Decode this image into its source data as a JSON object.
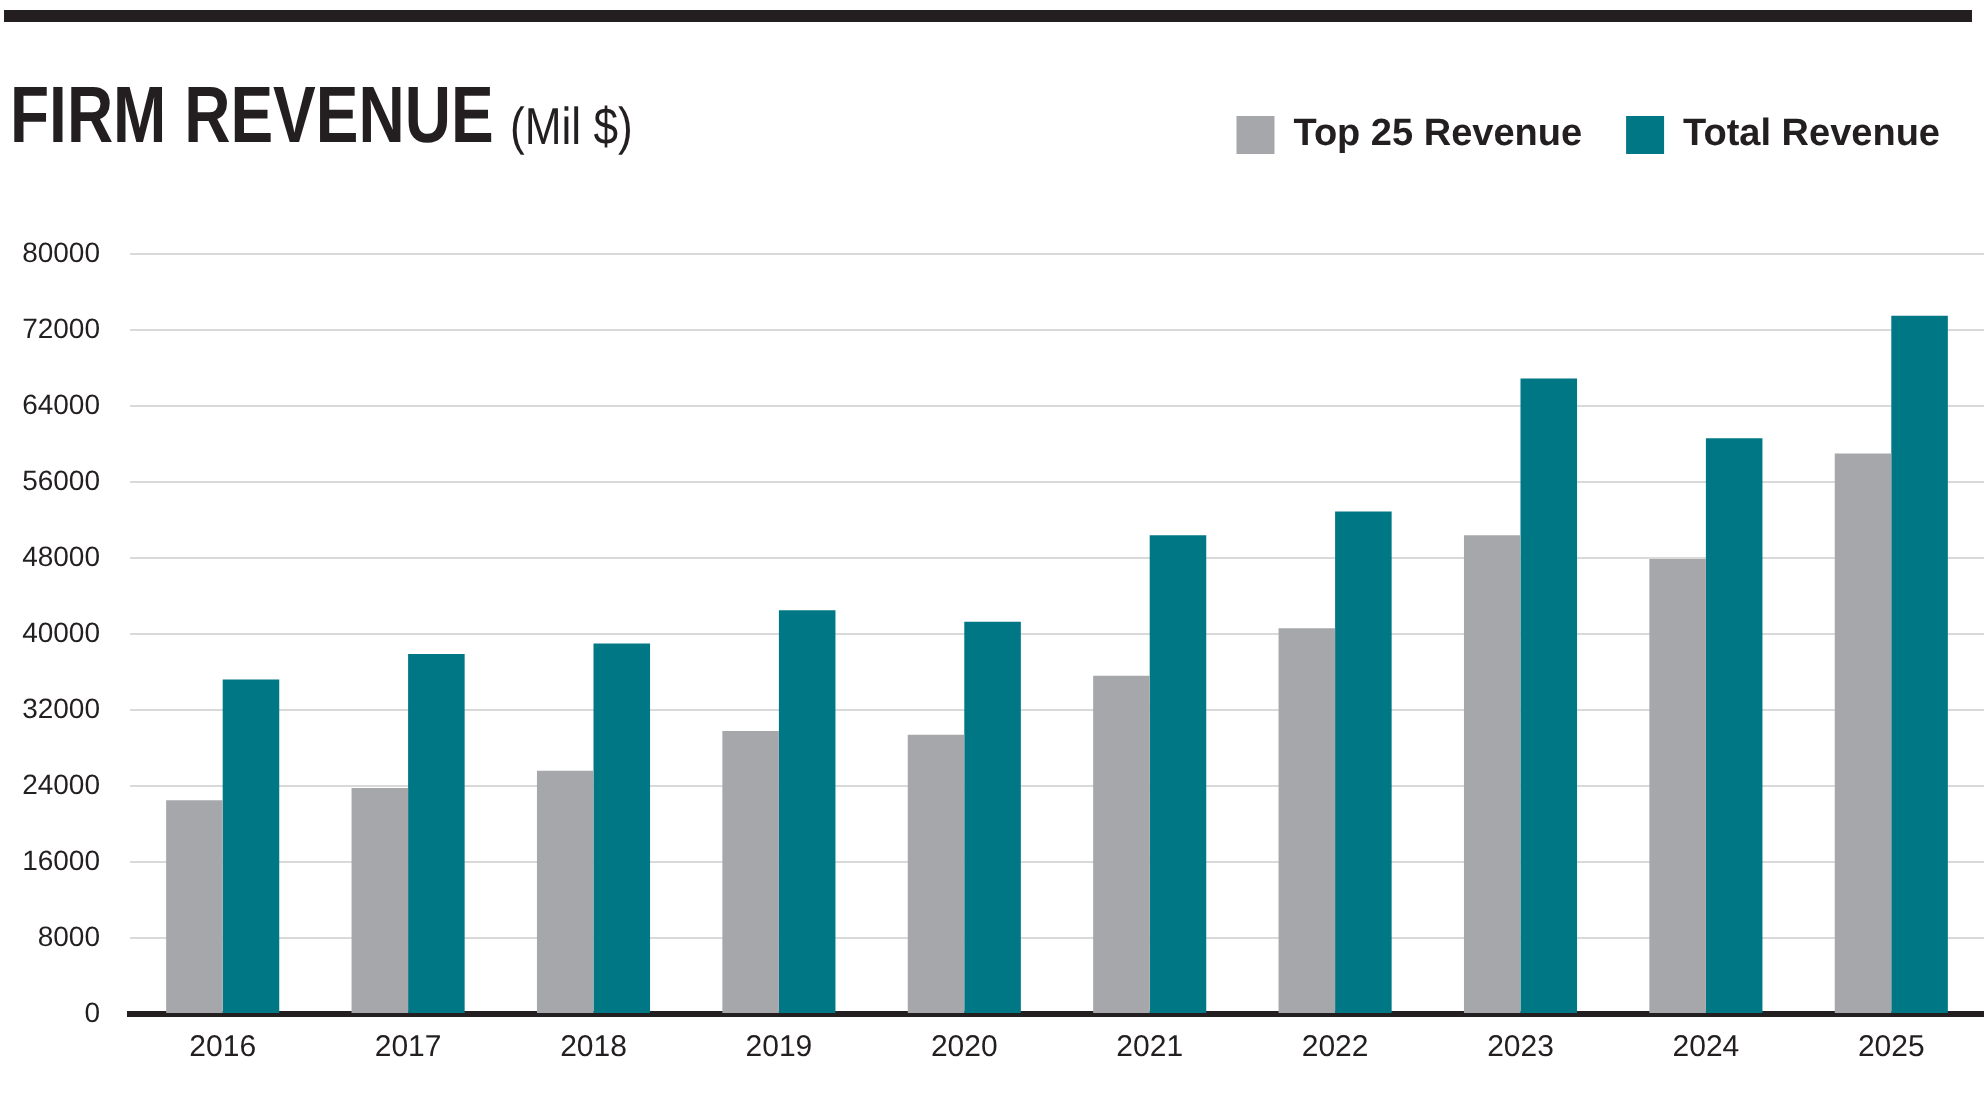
{
  "chart_data": {
    "type": "bar",
    "title": "FIRM REVENUE",
    "subtitle": "(Mil $)",
    "categories": [
      "2016",
      "2017",
      "2018",
      "2019",
      "2020",
      "2021",
      "2022",
      "2023",
      "2024",
      "2025"
    ],
    "series": [
      {
        "name": "Top 25 Revenue",
        "color": "#a6a7aa",
        "values": [
          22500,
          23800,
          25600,
          29800,
          29400,
          35600,
          40600,
          50400,
          47900,
          59000
        ]
      },
      {
        "name": "Total Revenue",
        "color": "#007785",
        "values": [
          35200,
          37900,
          39000,
          42500,
          41300,
          50400,
          52900,
          66900,
          60600,
          73500
        ]
      }
    ],
    "ylim": [
      0,
      80000
    ],
    "yticks": [
      0,
      8000,
      16000,
      24000,
      32000,
      40000,
      48000,
      56000,
      64000,
      72000,
      80000
    ],
    "grid": "y",
    "legend": "top right"
  }
}
